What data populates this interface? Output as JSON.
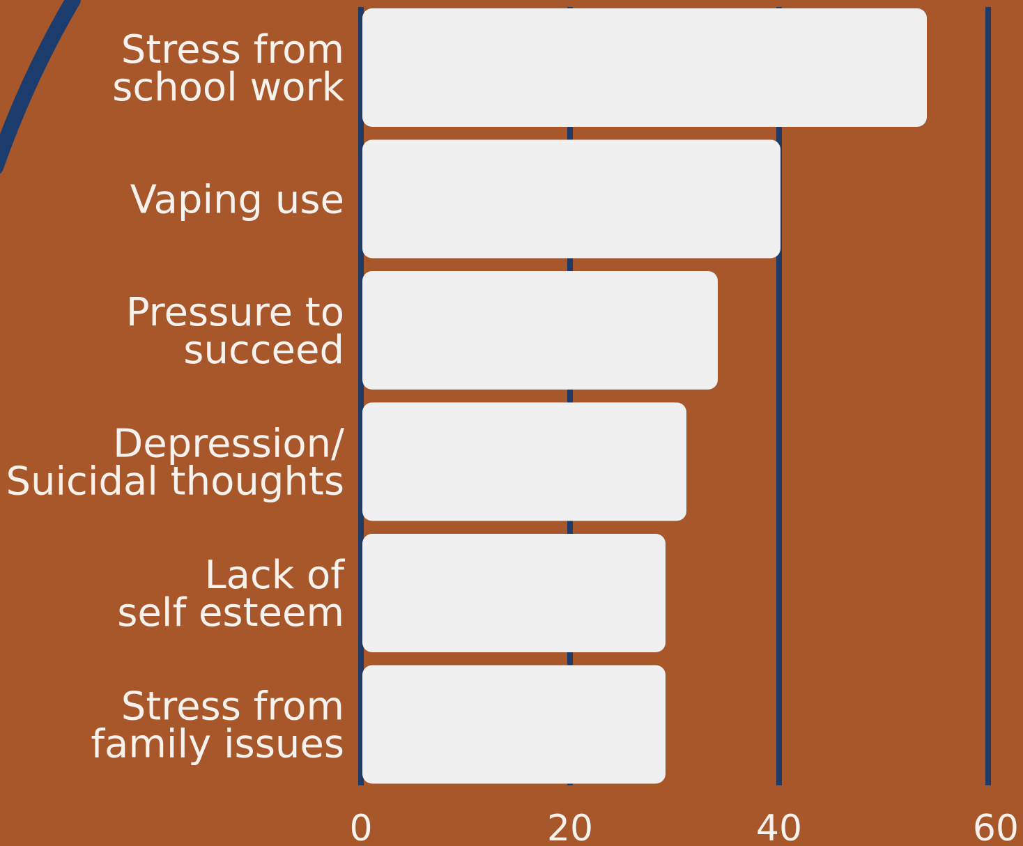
{
  "colors": {
    "background": "#a8572b",
    "bar": "#f0f0f0",
    "gridline": "#1e3a66",
    "text": "#f7f2ee",
    "decor_arc": "#1c3c6e"
  },
  "chart_data": {
    "type": "bar",
    "orientation": "horizontal",
    "categories": [
      [
        "Stress from",
        "school work"
      ],
      [
        "Vaping use"
      ],
      [
        "Pressure to",
        "succeed"
      ],
      [
        "Depression/",
        "Suicidal thoughts"
      ],
      [
        "Lack of",
        "self esteem"
      ],
      [
        "Stress from",
        "family issues"
      ]
    ],
    "values": [
      54,
      40,
      34,
      31,
      29,
      29
    ],
    "xlim": [
      0,
      60
    ],
    "xticks": [
      "0",
      "20",
      "40",
      "60"
    ],
    "xtick_values": [
      0,
      20,
      40,
      60
    ],
    "grid": true,
    "title": "",
    "xlabel": "",
    "ylabel": ""
  }
}
